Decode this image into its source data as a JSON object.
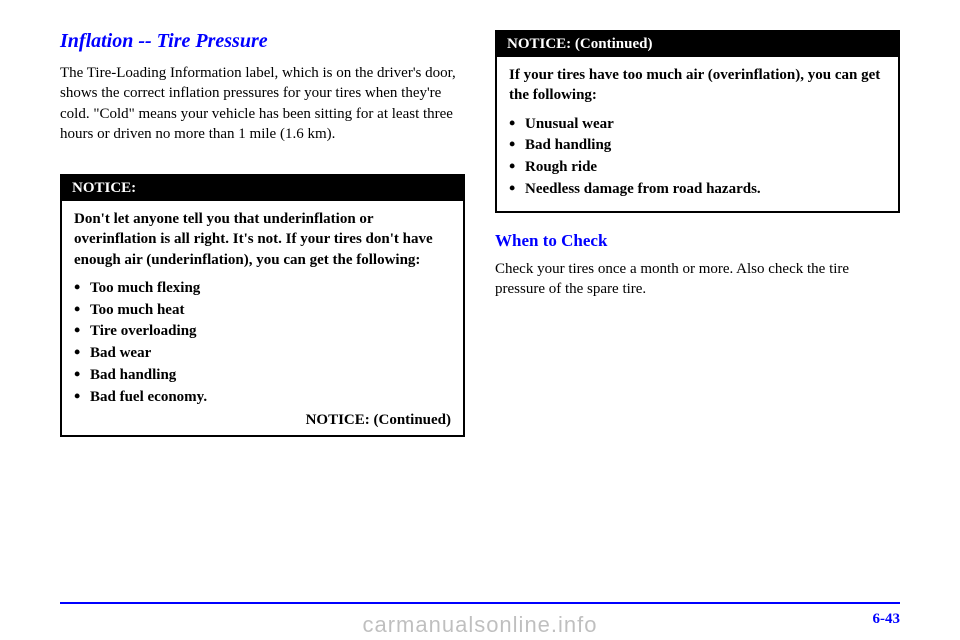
{
  "left": {
    "heading": "Inflation -- Tire Pressure",
    "paragraph": "The Tire-Loading Information label, which is on the driver's door, shows the correct inflation pressures for your tires when they're cold. \"Cold\" means your vehicle has been sitting for at least three hours or driven no more than 1 mile (1.6 km).",
    "notice_header": "NOTICE:",
    "notice_lead": "Don't let anyone tell you that underinflation or overinflation is all right. It's not. If your tires don't have enough air (underinflation), you can get the following:",
    "notice_items": [
      "Too much flexing",
      "Too much heat",
      "Tire overloading",
      "Bad wear",
      "Bad handling",
      "Bad fuel economy."
    ],
    "notice_continued": "NOTICE: (Continued)"
  },
  "right": {
    "notice_header": "NOTICE: (Continued)",
    "notice_lead": "If your tires have too much air (overinflation), you can get the following:",
    "notice_items": [
      "Unusual wear",
      "Bad handling",
      "Rough ride",
      "Needless damage from road hazards."
    ],
    "sub_heading": "When to Check",
    "paragraph": "Check your tires once a month or more. Also check the tire pressure of the spare tire."
  },
  "page_number": "6-43",
  "watermark": "carmanualsonline.info",
  "colors": {
    "link_blue": "#0000ff",
    "text": "#000000",
    "bg": "#ffffff"
  }
}
